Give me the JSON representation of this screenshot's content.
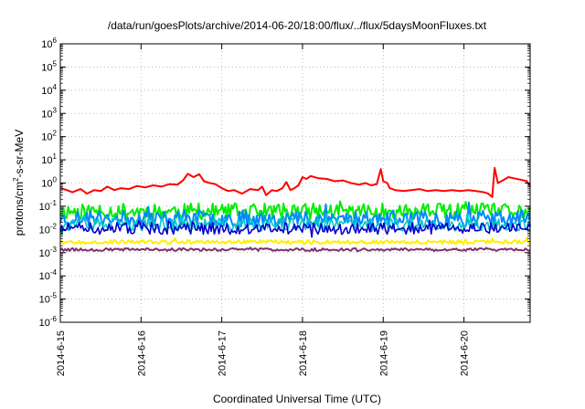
{
  "chart_data": {
    "type": "line",
    "title": "/data/run/goesPlots/archive/2014-06-20/18:00/flux/../flux/5daysMoonFluxes.txt",
    "xlabel": "Coordinated Universal Time (UTC)",
    "ylabel_base": "protons/cm",
    "ylabel_sup": "2",
    "ylabel_rest": "-s-sr-MeV",
    "yscale": "log",
    "ylim": [
      1e-06,
      1000000.0
    ],
    "xlim": [
      0,
      5.82
    ],
    "y_ticks": [
      {
        "exp": -6,
        "base": "10",
        "sup": "-6"
      },
      {
        "exp": -5,
        "base": "10",
        "sup": "-5"
      },
      {
        "exp": -4,
        "base": "10",
        "sup": "-4"
      },
      {
        "exp": -3,
        "base": "10",
        "sup": "-3"
      },
      {
        "exp": -2,
        "base": "10",
        "sup": "-2"
      },
      {
        "exp": -1,
        "base": "10",
        "sup": "-1"
      },
      {
        "exp": 0,
        "base": "10",
        "sup": "0"
      },
      {
        "exp": 1,
        "base": "10",
        "sup": "1"
      },
      {
        "exp": 2,
        "base": "10",
        "sup": "2"
      },
      {
        "exp": 3,
        "base": "10",
        "sup": "3"
      },
      {
        "exp": 4,
        "base": "10",
        "sup": "4"
      },
      {
        "exp": 5,
        "base": "10",
        "sup": "5"
      },
      {
        "exp": 6,
        "base": "10",
        "sup": "6"
      }
    ],
    "x_ticks": [
      {
        "day": 0,
        "label": "2014-6-15"
      },
      {
        "day": 1,
        "label": "2014-6-16"
      },
      {
        "day": 2,
        "label": "2014-6-17"
      },
      {
        "day": 3,
        "label": "2014-6-18"
      },
      {
        "day": 4,
        "label": "2014-6-19"
      },
      {
        "day": 5,
        "label": "2014-6-20"
      }
    ],
    "grid": true,
    "series": [
      {
        "color": "#ff0000",
        "width": 2,
        "points": [
          [
            0,
            0.6
          ],
          [
            0.08,
            0.5
          ],
          [
            0.15,
            0.4
          ],
          [
            0.25,
            0.55
          ],
          [
            0.33,
            0.35
          ],
          [
            0.42,
            0.5
          ],
          [
            0.5,
            0.45
          ],
          [
            0.58,
            0.7
          ],
          [
            0.67,
            0.5
          ],
          [
            0.75,
            0.6
          ],
          [
            0.85,
            0.55
          ],
          [
            0.95,
            0.75
          ],
          [
            1.05,
            0.65
          ],
          [
            1.15,
            0.8
          ],
          [
            1.25,
            0.7
          ],
          [
            1.35,
            0.9
          ],
          [
            1.45,
            0.85
          ],
          [
            1.52,
            1.3
          ],
          [
            1.58,
            2.5
          ],
          [
            1.65,
            1.8
          ],
          [
            1.72,
            2.4
          ],
          [
            1.78,
            1.2
          ],
          [
            1.85,
            1.0
          ],
          [
            1.92,
            0.9
          ],
          [
            2.0,
            0.6
          ],
          [
            2.08,
            0.45
          ],
          [
            2.15,
            0.5
          ],
          [
            2.25,
            0.35
          ],
          [
            2.35,
            0.55
          ],
          [
            2.45,
            0.5
          ],
          [
            2.5,
            0.7
          ],
          [
            2.55,
            0.3
          ],
          [
            2.62,
            0.5
          ],
          [
            2.68,
            0.45
          ],
          [
            2.75,
            0.6
          ],
          [
            2.8,
            1.1
          ],
          [
            2.85,
            0.5
          ],
          [
            2.9,
            0.6
          ],
          [
            2.95,
            0.8
          ],
          [
            3.0,
            1.8
          ],
          [
            3.05,
            1.5
          ],
          [
            3.1,
            2.0
          ],
          [
            3.2,
            1.6
          ],
          [
            3.3,
            1.5
          ],
          [
            3.4,
            1.2
          ],
          [
            3.5,
            1.3
          ],
          [
            3.6,
            1.0
          ],
          [
            3.7,
            0.85
          ],
          [
            3.78,
            1.0
          ],
          [
            3.85,
            0.8
          ],
          [
            3.92,
            0.9
          ],
          [
            3.97,
            4.0
          ],
          [
            4.0,
            1.2
          ],
          [
            4.05,
            1.0
          ],
          [
            4.08,
            0.6
          ],
          [
            4.15,
            0.5
          ],
          [
            4.25,
            0.45
          ],
          [
            4.35,
            0.5
          ],
          [
            4.45,
            0.55
          ],
          [
            4.55,
            0.45
          ],
          [
            4.65,
            0.5
          ],
          [
            4.75,
            0.45
          ],
          [
            4.85,
            0.5
          ],
          [
            4.95,
            0.45
          ],
          [
            5.05,
            0.5
          ],
          [
            5.15,
            0.45
          ],
          [
            5.25,
            0.4
          ],
          [
            5.3,
            0.35
          ],
          [
            5.35,
            0.25
          ],
          [
            5.38,
            4.5
          ],
          [
            5.42,
            1.0
          ],
          [
            5.48,
            1.3
          ],
          [
            5.55,
            1.8
          ],
          [
            5.62,
            1.6
          ],
          [
            5.7,
            1.4
          ],
          [
            5.78,
            1.2
          ],
          [
            5.82,
            0.7
          ]
        ]
      },
      {
        "color": "#00ee00",
        "width": 2,
        "base": 0.06,
        "amp": 0.35,
        "seed": 11,
        "n": 300
      },
      {
        "color": "#0088ff",
        "width": 2,
        "base": 0.03,
        "amp": 0.35,
        "seed": 23,
        "n": 300
      },
      {
        "color": "#00c8c8",
        "width": 1.6,
        "base": 0.016,
        "amp": 0.28,
        "seed": 37,
        "n": 300
      },
      {
        "color": "#0000cc",
        "width": 1.6,
        "base": 0.011,
        "amp": 0.25,
        "seed": 51,
        "n": 300
      },
      {
        "color": "#ffee00",
        "width": 2,
        "base": 0.0029,
        "amp": 0.08,
        "seed": 67,
        "n": 300
      },
      {
        "color": "#80306a",
        "width": 2,
        "base": 0.00135,
        "amp": 0.06,
        "seed": 79,
        "n": 300
      }
    ]
  }
}
